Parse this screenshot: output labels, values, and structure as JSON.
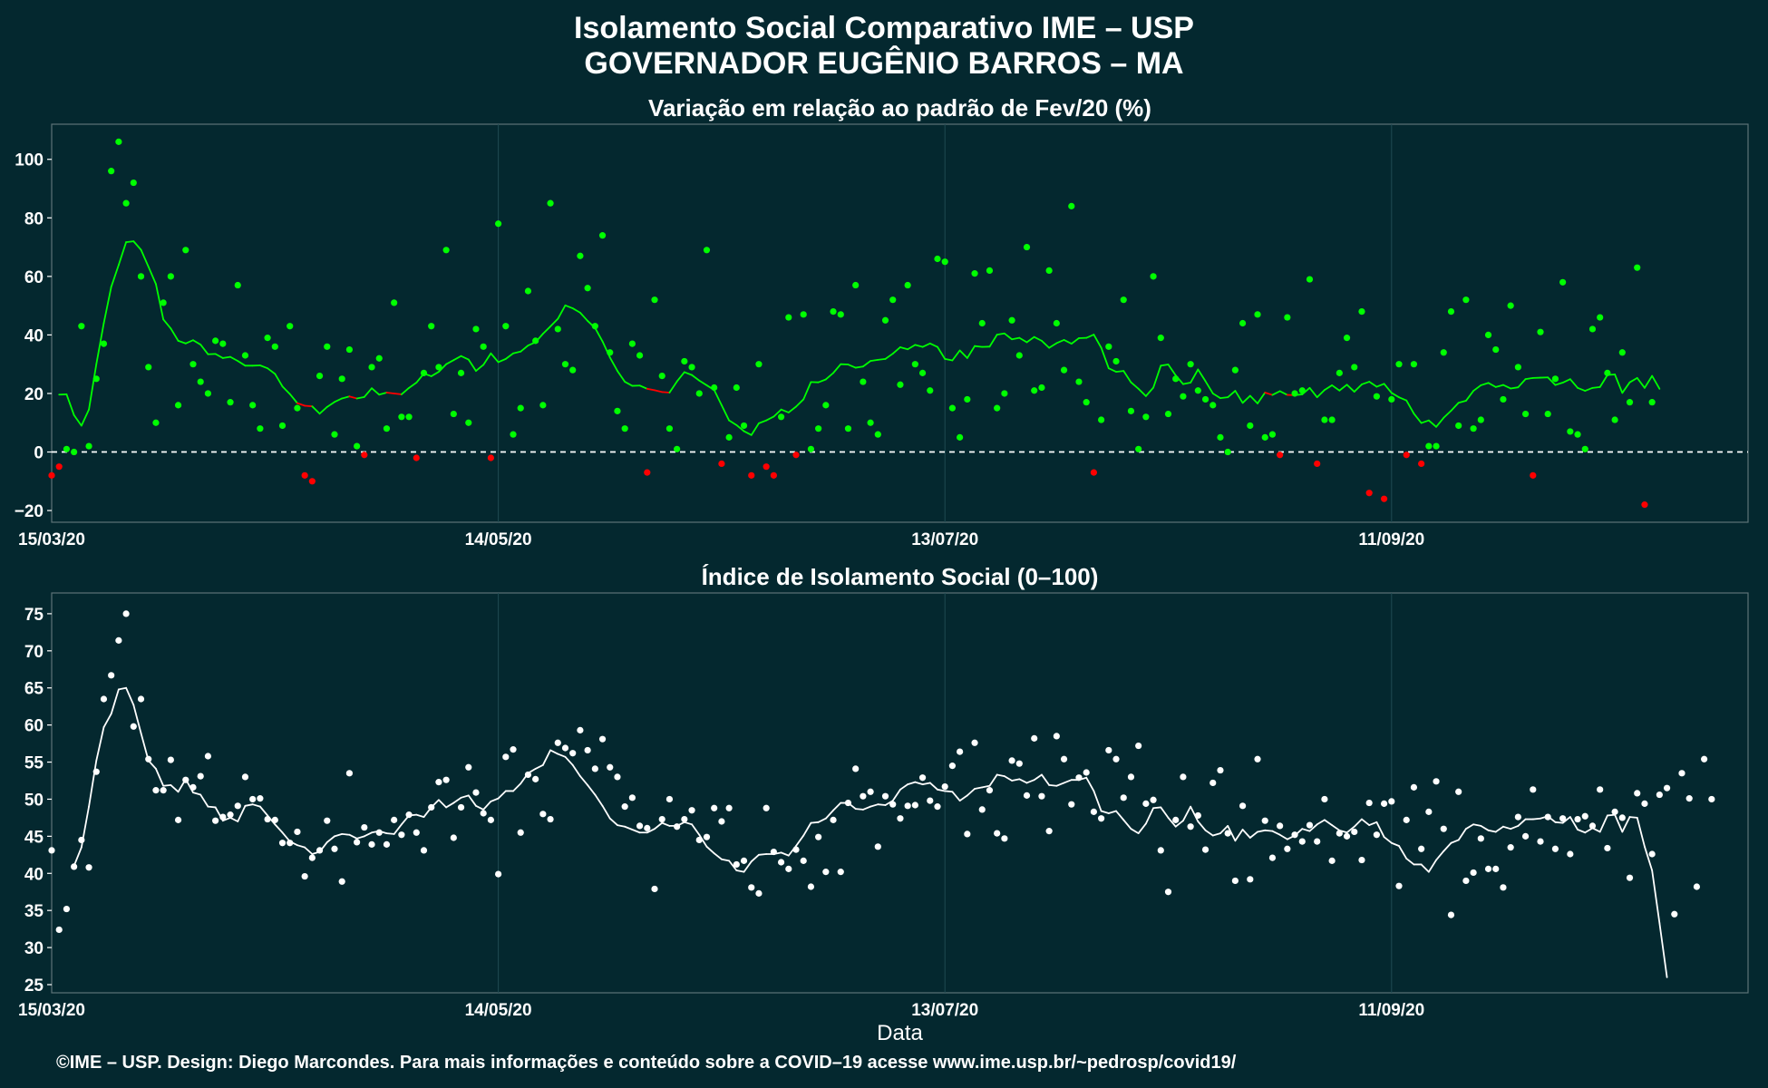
{
  "header": {
    "title_line1": "Isolamento Social Comparativo IME – USP",
    "title_line2": "GOVERNADOR EUGÊNIO BARROS – MA"
  },
  "footer": {
    "credit": "©IME – USP. Design: Diego Marcondes. Para mais informações e conteúdo sobre a COVID–19 acesse www.ime.usp.br/~pedrosp/covid19/"
  },
  "colors": {
    "background": "#04282f",
    "positive": "#00ff00",
    "negative": "#ff0000",
    "index_series": "#ffffff"
  },
  "chart_data": [
    {
      "type": "scatter",
      "title": "Variação em relação ao padrão de Fev/20 (%)",
      "xlabel": "",
      "ylabel": "",
      "x_start": "15/03/20",
      "x_ticks": [
        {
          "day": 0,
          "label": "15/03/20"
        },
        {
          "day": 60,
          "label": "14/05/20"
        },
        {
          "day": 120,
          "label": "13/07/20"
        },
        {
          "day": 180,
          "label": "11/09/20"
        }
      ],
      "ylim": [
        -24,
        112
      ],
      "y_ticks": [
        -20,
        0,
        20,
        40,
        60,
        80,
        100
      ],
      "reference_line": 0,
      "grid": true,
      "points": [
        -8,
        -5,
        1,
        0,
        43,
        2,
        25,
        37,
        96,
        106,
        85,
        92,
        60,
        29,
        10,
        51,
        60,
        16,
        69,
        30,
        24,
        20,
        38,
        37,
        17,
        57,
        33,
        16,
        8,
        39,
        36,
        9,
        43,
        15,
        -8,
        -10,
        26,
        36,
        6,
        25,
        35,
        2,
        -1,
        29,
        32,
        8,
        51,
        12,
        12,
        -2,
        27,
        43,
        29,
        69,
        13,
        27,
        10,
        42,
        36,
        -2,
        78,
        43,
        6,
        15,
        55,
        38,
        16,
        85,
        42,
        30,
        28,
        67,
        56,
        43,
        74,
        34,
        14,
        8,
        37,
        33,
        -7,
        52,
        26,
        8,
        1,
        31,
        29,
        20,
        69,
        22,
        -4,
        5,
        22,
        9,
        -8,
        30,
        -5,
        -8,
        12,
        46,
        -1,
        47,
        1,
        8,
        16,
        48,
        47,
        8,
        57,
        24,
        10,
        6,
        45,
        52,
        23,
        57,
        30,
        27,
        21,
        66,
        65,
        15,
        5,
        18,
        61,
        44,
        62,
        15,
        20,
        45,
        33,
        70,
        21,
        22,
        62,
        44,
        28,
        84,
        24,
        17,
        -7,
        11,
        36,
        31,
        52,
        14,
        1,
        12,
        60,
        39,
        13,
        25,
        19,
        30,
        21,
        18,
        16,
        5,
        0,
        28,
        44,
        9,
        47,
        5,
        6,
        -1,
        46,
        20,
        21,
        59,
        -4,
        11,
        11,
        27,
        39,
        29,
        48,
        -14,
        19,
        -16,
        18,
        30,
        -1,
        30,
        -4,
        2,
        2,
        34,
        48,
        9,
        52,
        8,
        11,
        40,
        35,
        18,
        50,
        29,
        13,
        -8,
        41,
        13,
        25,
        58,
        7,
        6,
        1,
        42,
        46,
        27,
        11,
        34,
        17,
        63,
        -18,
        17
      ],
      "moving_average": [
        null,
        19.6,
        19.7,
        12.6,
        9.0,
        14.5,
        30.0,
        44.0,
        56.4,
        63.9,
        71.7,
        72.0,
        69.1,
        63.3,
        57.4,
        45.3,
        42.2,
        38.0,
        37.1,
        38.2,
        36.7,
        33.4,
        33.5,
        32.1,
        32.5,
        31.1,
        29.5,
        29.5,
        29.6,
        28.6,
        26.7,
        22.4,
        19.8,
        16.7,
        15.8,
        15.6,
        13.1,
        15.4,
        17.1,
        18.3,
        19.0,
        18.3,
        18.8,
        21.8,
        19.6,
        20.3,
        20.0,
        19.7,
        21.9,
        23.7,
        26.8,
        25.9,
        27.4,
        30.0,
        31.4,
        32.8,
        31.6,
        27.7,
        29.8,
        33.7,
        30.7,
        31.8,
        33.7,
        34.3,
        36.4,
        37.5,
        40.4,
        42.9,
        45.5,
        50.1,
        49.1,
        47.6,
        44.8,
        42.4,
        37.8,
        32.3,
        27.7,
        24.0,
        22.6,
        22.7,
        21.6,
        21.1,
        20.5,
        20.3,
        24.1,
        27.3,
        26.3,
        24.4,
        22.8,
        21.2,
        16.0,
        10.8,
        9.2,
        7.1,
        5.8,
        9.8,
        10.8,
        12.1,
        14.5,
        13.5,
        15.5,
        18.0,
        23.9,
        23.8,
        24.8,
        27.0,
        30.0,
        29.9,
        28.8,
        29.2,
        31.1,
        31.5,
        31.8,
        33.6,
        35.8,
        35.1,
        36.6,
        35.9,
        37.1,
        35.9,
        31.8,
        31.3,
        34.7,
        32.1,
        36.2,
        35.9,
        36.0,
        40.1,
        40.5,
        38.5,
        39.0,
        37.5,
        39.3,
        38.0,
        35.6,
        37.2,
        38.3,
        37.0,
        38.9,
        39.0,
        40.1,
        35.6,
        28.6,
        27.4,
        27.7,
        23.8,
        21.6,
        19.1,
        22.0,
        29.5,
        29.9,
        26.2,
        23.2,
        23.7,
        28.2,
        24.2,
        20.0,
        18.4,
        18.7,
        20.9,
        16.8,
        19.2,
        16.6,
        20.3,
        19.5,
        20.8,
        19.5,
        19.4,
        19.7,
        21.9,
        18.7,
        21.2,
        22.8,
        21.0,
        23.0,
        20.6,
        23.1,
        24.0,
        22.3,
        23.3,
        20.2,
        18.7,
        17.6,
        13.1,
        9.9,
        10.8,
        8.6,
        11.7,
        14.1,
        16.8,
        17.5,
        20.9,
        22.8,
        23.6,
        22.2,
        22.9,
        21.7,
        22.1,
        24.9,
        25.3,
        25.4,
        25.5,
        22.9,
        23.7,
        24.9,
        21.9,
        20.9,
        21.9,
        22.2,
        26.3,
        26.5,
        20.2,
        23.8,
        25.3,
        21.9,
        26.0,
        21.6
      ]
    },
    {
      "type": "scatter",
      "title": "Índice de Isolamento Social (0–100)",
      "xlabel": "Data",
      "ylabel": "",
      "x_start": "15/03/20",
      "x_ticks": [
        {
          "day": 0,
          "label": "15/03/20"
        },
        {
          "day": 60,
          "label": "14/05/20"
        },
        {
          "day": 120,
          "label": "13/07/20"
        },
        {
          "day": 180,
          "label": "11/09/20"
        }
      ],
      "ylim": [
        23.9,
        77.8
      ],
      "y_ticks": [
        25,
        30,
        35,
        40,
        45,
        50,
        55,
        60,
        65,
        70,
        75
      ],
      "grid": true,
      "points": [
        43.1,
        32.4,
        35.2,
        40.9,
        44.5,
        40.8,
        53.7,
        63.5,
        66.7,
        71.4,
        75.0,
        59.8,
        63.5,
        55.4,
        51.2,
        51.2,
        55.3,
        47.2,
        52.6,
        51.6,
        53.1,
        55.8,
        47.1,
        47.6,
        47.9,
        49.1,
        53.0,
        50.0,
        50.1,
        47.3,
        47.2,
        44.1,
        44.1,
        45.6,
        39.6,
        42.1,
        43.1,
        47.1,
        43.3,
        38.9,
        53.5,
        44.2,
        46.2,
        43.9,
        45.5,
        43.9,
        47.2,
        45.2,
        47.9,
        45.5,
        43.1,
        48.9,
        52.3,
        52.6,
        44.8,
        48.9,
        54.3,
        50.9,
        48.1,
        47.2,
        39.9,
        55.7,
        56.7,
        45.5,
        53.3,
        52.7,
        48.0,
        47.3,
        57.6,
        56.9,
        56.2,
        59.3,
        56.6,
        54.1,
        58.1,
        54.3,
        53.0,
        49.0,
        50.2,
        46.4,
        46.1,
        37.9,
        47.3,
        50.0,
        46.3,
        47.3,
        48.5,
        44.5,
        44.9,
        48.8,
        47.0,
        48.8,
        41.2,
        41.7,
        38.1,
        37.3,
        48.8,
        42.9,
        41.5,
        40.6,
        43.2,
        41.7,
        38.2,
        44.9,
        40.2,
        47.2,
        40.2,
        49.5,
        54.1,
        50.4,
        51.0,
        43.6,
        50.4,
        49.3,
        47.4,
        49.1,
        49.2,
        52.9,
        49.8,
        49.0,
        51.7,
        54.5,
        56.4,
        45.3,
        57.6,
        48.6,
        51.2,
        45.4,
        44.7,
        55.2,
        54.8,
        50.5,
        58.2,
        50.4,
        45.7,
        58.5,
        55.4,
        49.3,
        52.9,
        53.6,
        48.3,
        47.4,
        56.6,
        55.4,
        50.2,
        53.0,
        57.2,
        49.4,
        49.9,
        43.1,
        37.5,
        47.2,
        53.0,
        46.3,
        47.8,
        43.2,
        52.2,
        53.9,
        45.4,
        39.0,
        49.1,
        39.2,
        55.4,
        47.1,
        42.1,
        46.4,
        43.3,
        45.2,
        44.3,
        46.5,
        44.3,
        50.0,
        41.7,
        45.4,
        45.0,
        45.6,
        41.8,
        49.5,
        45.2,
        49.4,
        49.7,
        38.3,
        47.2,
        51.6,
        43.3,
        48.3,
        52.4,
        46.0,
        34.4,
        51.0,
        39.0,
        40.1,
        44.7,
        40.6,
        40.6,
        38.1,
        43.5,
        47.6,
        45.0,
        51.3,
        44.3,
        47.6,
        43.3,
        47.4,
        42.6,
        47.3,
        47.7,
        46.4,
        51.3,
        43.4,
        48.3,
        47.5,
        39.4,
        50.8,
        49.4,
        42.6,
        50.6,
        51.5,
        34.5,
        53.5,
        50.1,
        38.2,
        55.4,
        50.0
      ],
      "moving_average": [
        null,
        null,
        null,
        41.0,
        43.5,
        49.0,
        55.2,
        59.7,
        61.5,
        64.8,
        65.0,
        62.7,
        58.9,
        55.2,
        54.1,
        51.8,
        51.9,
        51.0,
        52.7,
        50.9,
        50.6,
        49.0,
        48.9,
        47.1,
        47.5,
        47.0,
        49.1,
        49.3,
        49.0,
        47.8,
        46.6,
        45.5,
        44.3,
        43.8,
        43.5,
        42.6,
        42.9,
        44.2,
        45.0,
        45.3,
        45.2,
        44.7,
        45.0,
        45.5,
        45.7,
        45.4,
        45.3,
        46.6,
        47.8,
        47.9,
        47.6,
        48.9,
        49.9,
        48.9,
        49.5,
        50.2,
        50.5,
        49.1,
        48.6,
        49.7,
        50.1,
        51.1,
        51.1,
        52.1,
        53.5,
        54.1,
        54.6,
        56.6,
        56.1,
        55.7,
        54.6,
        53.1,
        51.9,
        50.6,
        49.1,
        47.4,
        46.5,
        46.3,
        45.9,
        45.5,
        45.5,
        46.0,
        46.8,
        46.4,
        46.4,
        46.9,
        46.6,
        45.2,
        43.6,
        42.7,
        41.9,
        41.7,
        40.4,
        40.2,
        41.6,
        42.5,
        42.6,
        42.6,
        42.8,
        42.4,
        43.7,
        45.1,
        46.8,
        46.9,
        47.4,
        48.5,
        49.5,
        49.5,
        48.7,
        48.6,
        49.0,
        49.3,
        49.2,
        49.8,
        51.3,
        52.0,
        52.3,
        52.0,
        52.2,
        51.3,
        51.1,
        51.0,
        49.8,
        50.5,
        51.4,
        51.6,
        51.8,
        53.3,
        53.1,
        52.5,
        52.7,
        52.2,
        52.6,
        53.3,
        51.9,
        51.8,
        52.2,
        52.6,
        52.6,
        52.9,
        51.1,
        48.4,
        48.1,
        48.4,
        47.2,
        46.0,
        45.4,
        46.7,
        48.8,
        48.9,
        47.5,
        46.3,
        47.1,
        49.0,
        47.0,
        45.8,
        45.1,
        45.4,
        46.4,
        44.4,
        45.9,
        44.8,
        45.6,
        45.8,
        45.7,
        45.2,
        44.6,
        45.1,
        46.0,
        45.7,
        46.6,
        47.2,
        46.5,
        45.8,
        45.5,
        46.3,
        47.3,
        46.5,
        46.9,
        44.9,
        44.1,
        43.7,
        42.0,
        41.2,
        41.2,
        40.2,
        41.8,
        43.0,
        44.1,
        44.5,
        46.0,
        46.6,
        46.4,
        45.8,
        45.6,
        46.3,
        46.0,
        46.4,
        47.3,
        47.3,
        47.4,
        47.7,
        46.9,
        46.8,
        47.6,
        45.9,
        45.5,
        46.1,
        45.6,
        47.8,
        47.9,
        45.6,
        47.6,
        47.5,
        43.6,
        40.4,
        33.3,
        26.0
      ]
    }
  ]
}
